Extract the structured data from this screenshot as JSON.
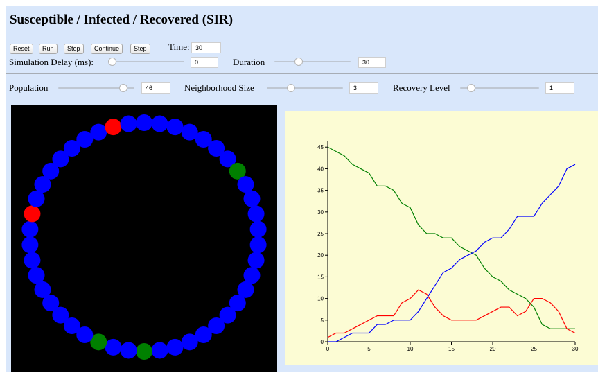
{
  "app": {
    "title": "Susceptible / Infected / Recovered (SIR)"
  },
  "controls": {
    "buttons": {
      "reset": "Reset",
      "run": "Run",
      "stop": "Stop",
      "continue": "Continue",
      "step": "Step"
    },
    "time": {
      "label": "Time:",
      "value": "30"
    },
    "simulation_delay": {
      "label": "Simulation Delay (ms):",
      "value": "0",
      "slider_fraction": 0.0
    },
    "duration": {
      "label": "Duration",
      "value": "30",
      "slider_fraction": 0.3
    }
  },
  "parameters": {
    "population": {
      "label": "Population",
      "value": "46",
      "slider_fraction": 0.9
    },
    "neighborhood_size": {
      "label": "Neighborhood Size",
      "value": "3",
      "slider_fraction": 0.3
    },
    "recovery_level": {
      "label": "Recovery Level",
      "value": "1",
      "slider_fraction": 0.1
    }
  },
  "ring": {
    "count": 46,
    "colors": {
      "susceptible": "#0000ff",
      "infected": "#ff0000",
      "recovered": "#008000"
    },
    "states": [
      "S",
      "S",
      "S",
      "S",
      "S",
      "S",
      "S",
      "R",
      "S",
      "S",
      "S",
      "S",
      "S",
      "S",
      "S",
      "S",
      "S",
      "S",
      "S",
      "S",
      "S",
      "S",
      "S",
      "R",
      "S",
      "S",
      "R",
      "S",
      "S",
      "S",
      "S",
      "S",
      "S",
      "S",
      "S",
      "S",
      "I",
      "S",
      "S",
      "S",
      "S",
      "S",
      "S",
      "S",
      "I",
      "S"
    ]
  },
  "chart_data": {
    "type": "line",
    "x": [
      0,
      1,
      2,
      3,
      4,
      5,
      6,
      7,
      8,
      9,
      10,
      11,
      12,
      13,
      14,
      15,
      16,
      17,
      18,
      19,
      20,
      21,
      22,
      23,
      24,
      25,
      26,
      27,
      28,
      29,
      30
    ],
    "series": [
      {
        "color": "#008000",
        "values": [
          45,
          44,
          43,
          41,
          40,
          39,
          36,
          36,
          35,
          32,
          31,
          27,
          25,
          25,
          24,
          24,
          22,
          21,
          20,
          17,
          15,
          14,
          12,
          11,
          10,
          8,
          4,
          3,
          3,
          3,
          3
        ]
      },
      {
        "color": "#ff0000",
        "values": [
          1,
          2,
          2,
          3,
          4,
          5,
          6,
          6,
          6,
          9,
          10,
          12,
          11,
          8,
          6,
          5,
          5,
          5,
          5,
          6,
          7,
          8,
          8,
          6,
          7,
          10,
          10,
          9,
          7,
          3,
          2
        ]
      },
      {
        "color": "#0000ff",
        "values": [
          0,
          0,
          1,
          2,
          2,
          2,
          4,
          4,
          5,
          5,
          5,
          7,
          10,
          13,
          16,
          17,
          19,
          20,
          21,
          23,
          24,
          24,
          26,
          29,
          29,
          29,
          32,
          34,
          36,
          40,
          41
        ]
      }
    ],
    "xlim": [
      0,
      30
    ],
    "ylim": [
      0,
      46
    ],
    "xticks": [
      "0",
      "5",
      "10",
      "15",
      "20",
      "25",
      "30"
    ],
    "yticks": [
      "0",
      "5",
      "10",
      "15",
      "20",
      "25",
      "30",
      "35",
      "40",
      "45"
    ],
    "grid": false
  }
}
